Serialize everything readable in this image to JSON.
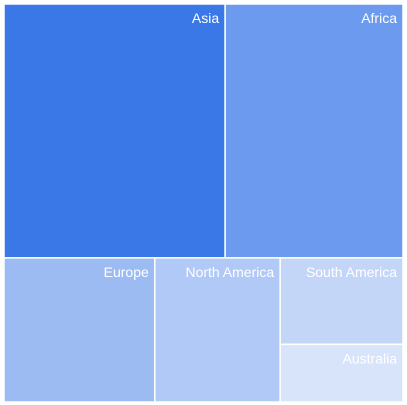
{
  "chart_data": {
    "type": "treemap",
    "title": "",
    "colors": {
      "base": "#3a78e8",
      "stroke": "#ffffff",
      "label": "#ffffff"
    },
    "items": [
      {
        "name": "Asia",
        "value": 46.0,
        "opacity": 1.0
      },
      {
        "name": "Africa",
        "value": 37.0,
        "opacity": 0.75
      },
      {
        "name": "Europe",
        "value": 17.8,
        "opacity": 0.5
      },
      {
        "name": "North America",
        "value": 14.8,
        "opacity": 0.4
      },
      {
        "name": "South America",
        "value": 8.7,
        "opacity": 0.3
      },
      {
        "name": "Australia",
        "value": 5.8,
        "opacity": 0.2
      }
    ]
  }
}
